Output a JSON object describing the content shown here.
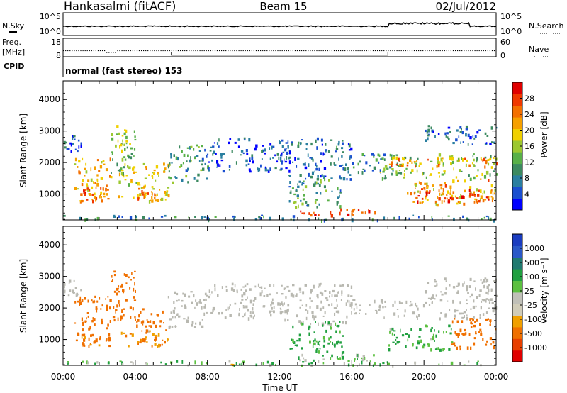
{
  "header": {
    "station": "Hankasalmi (fitACF)",
    "beam": "Beam 15",
    "date": "02/Jul/2012"
  },
  "noise_panel": {
    "left_label": "N.Sky",
    "right_label": "N.Search",
    "left_ticks": [
      "10^5",
      "10^0"
    ],
    "right_ticks": [
      "10^5",
      "10^0"
    ]
  },
  "freq_panel": {
    "left_label_1": "Freq.",
    "left_label_2": "[MHz]",
    "right_label": "Nave",
    "left_ticks": [
      "18",
      "8"
    ],
    "right_ticks": [
      "60",
      "0"
    ],
    "freq_mhz": 11.5,
    "freq_dip": {
      "start_h": 2.4,
      "end_h": 3.0,
      "value": 10.5
    },
    "nave_segments": [
      {
        "start_h": 0,
        "end_h": 6.0,
        "value": 15
      },
      {
        "start_h": 6.0,
        "end_h": 18.0,
        "value": 5
      },
      {
        "start_h": 18.0,
        "end_h": 24.0,
        "value": 15
      }
    ]
  },
  "cpid": {
    "label": "CPID",
    "mode": "normal (fast stereo) 153"
  },
  "colors": {
    "power": [
      "#0000ff",
      "#1a4fd0",
      "#2a7fa0",
      "#3c8a60",
      "#58b048",
      "#9cc830",
      "#f0d000",
      "#f6a000",
      "#f47000",
      "#f03800",
      "#e00000"
    ],
    "velocity": [
      "#1a3cc0",
      "#2a58c8",
      "#207a70",
      "#20a040",
      "#5cc040",
      "#c0c0b8",
      "#d0ccb8",
      "#f0a000",
      "#f07000",
      "#e84000",
      "#e00000"
    ],
    "ground_scatter": "#b8b8b0"
  },
  "chart_data": [
    {
      "type": "heatmap",
      "name": "Power",
      "xlabel": "Time UT",
      "ylabel": "Slant Range [km]",
      "xlim": [
        0,
        24
      ],
      "ylim": [
        180,
        4590
      ],
      "x_ticks": [
        "00:00",
        "04:00",
        "08:00",
        "12:00",
        "16:00",
        "20:00",
        "00:00"
      ],
      "y_ticks": [
        1000,
        2000,
        3000,
        4000
      ],
      "colorbar_title": "Power [dB]",
      "colorbar_ticks": [
        4,
        8,
        12,
        16,
        20,
        24,
        28
      ],
      "colorbar_range": [
        0,
        30
      ],
      "regions": [
        {
          "t": [
            0.0,
            1.0
          ],
          "r": [
            2400,
            2900
          ],
          "level": 6
        },
        {
          "t": [
            0.6,
            2.6
          ],
          "r": [
            800,
            2200
          ],
          "level": 20
        },
        {
          "t": [
            0.9,
            2.1
          ],
          "r": [
            800,
            1300
          ],
          "level": 24
        },
        {
          "t": [
            2.6,
            4.0
          ],
          "r": [
            1500,
            3200
          ],
          "level": 14
        },
        {
          "t": [
            3.0,
            5.8
          ],
          "r": [
            800,
            2000
          ],
          "level": 18
        },
        {
          "t": [
            4.0,
            5.2
          ],
          "r": [
            900,
            1300
          ],
          "level": 22
        },
        {
          "t": [
            5.8,
            8.0
          ],
          "r": [
            1400,
            2600
          ],
          "level": 10
        },
        {
          "t": [
            8.0,
            12.5
          ],
          "r": [
            1700,
            2800
          ],
          "level": 5
        },
        {
          "t": [
            12.0,
            16.0
          ],
          "r": [
            1500,
            2800
          ],
          "level": 6
        },
        {
          "t": [
            12.5,
            15.5
          ],
          "r": [
            600,
            1600
          ],
          "level": 10
        },
        {
          "t": [
            13.0,
            17.5
          ],
          "r": [
            350,
            550
          ],
          "level": 24
        },
        {
          "t": [
            16.0,
            18.5
          ],
          "r": [
            1700,
            2300
          ],
          "level": 8
        },
        {
          "t": [
            17.5,
            24.0
          ],
          "r": [
            1500,
            2300
          ],
          "level": 14
        },
        {
          "t": [
            18.0,
            24.0
          ],
          "r": [
            1900,
            2200
          ],
          "level": 22
        },
        {
          "t": [
            19.0,
            24.0
          ],
          "r": [
            700,
            1500
          ],
          "level": 20
        },
        {
          "t": [
            19.5,
            24.0
          ],
          "r": [
            800,
            1200
          ],
          "level": 26
        },
        {
          "t": [
            20.0,
            24.0
          ],
          "r": [
            2600,
            3200
          ],
          "level": 6
        },
        {
          "t": [
            0.0,
            24.0
          ],
          "r": [
            200,
            350
          ],
          "level": 8
        }
      ]
    },
    {
      "type": "heatmap",
      "name": "Velocity",
      "xlabel": "Time UT",
      "ylabel": "Slant Range [km]",
      "xlim": [
        0,
        24
      ],
      "ylim": [
        180,
        4590
      ],
      "x_ticks": [
        "00:00",
        "04:00",
        "08:00",
        "12:00",
        "16:00",
        "20:00",
        "00:00"
      ],
      "y_ticks": [
        1000,
        2000,
        3000,
        4000
      ],
      "colorbar_title": "Velocity [m s⁻¹]",
      "colorbar_ticks": [
        1000,
        500,
        100,
        25,
        -25,
        -100,
        -500,
        -1000
      ],
      "regions": [
        {
          "t": [
            0.0,
            1.0
          ],
          "r": [
            2400,
            2900
          ],
          "v": 0
        },
        {
          "t": [
            0.6,
            2.6
          ],
          "r": [
            900,
            2400
          ],
          "v": -300
        },
        {
          "t": [
            1.0,
            2.6
          ],
          "r": [
            800,
            1200
          ],
          "v": -150
        },
        {
          "t": [
            2.6,
            4.0
          ],
          "r": [
            1500,
            3200
          ],
          "v": -400
        },
        {
          "t": [
            3.0,
            5.8
          ],
          "r": [
            800,
            1400
          ],
          "v": -120
        },
        {
          "t": [
            4.0,
            5.8
          ],
          "r": [
            1400,
            2000
          ],
          "v": -350
        },
        {
          "t": [
            5.8,
            8.0
          ],
          "r": [
            1400,
            2600
          ],
          "v": 0
        },
        {
          "t": [
            8.0,
            12.5
          ],
          "r": [
            1700,
            2800
          ],
          "v": 0
        },
        {
          "t": [
            12.0,
            16.0
          ],
          "r": [
            1500,
            2800
          ],
          "v": 0
        },
        {
          "t": [
            12.5,
            15.5
          ],
          "r": [
            600,
            1600
          ],
          "v": 150
        },
        {
          "t": [
            13.0,
            17.5
          ],
          "r": [
            350,
            550
          ],
          "v": 80
        },
        {
          "t": [
            16.0,
            24.0
          ],
          "r": [
            1700,
            2300
          ],
          "v": 0
        },
        {
          "t": [
            18.0,
            21.5
          ],
          "r": [
            700,
            1500
          ],
          "v": 120
        },
        {
          "t": [
            21.5,
            24.0
          ],
          "r": [
            700,
            1700
          ],
          "v": -400
        },
        {
          "t": [
            20.0,
            24.0
          ],
          "r": [
            2300,
            3000
          ],
          "v": 0
        },
        {
          "t": [
            0.0,
            24.0
          ],
          "r": [
            200,
            350
          ],
          "v": 60
        }
      ]
    }
  ]
}
